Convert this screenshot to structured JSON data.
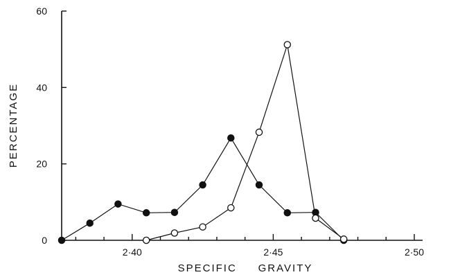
{
  "chart_data": {
    "type": "line",
    "xlabel": "SPECIFIC     GRAVITY",
    "ylabel": "PERCENTAGE",
    "xlim": [
      2.375,
      2.5
    ],
    "ylim": [
      0,
      60
    ],
    "x_ticks": [
      2.4,
      2.45,
      2.5
    ],
    "x_tick_labels": [
      "2·40",
      "2·45",
      "2·50"
    ],
    "x_minor_ticks": [
      2.38,
      2.39,
      2.41,
      2.42,
      2.43,
      2.44,
      2.46,
      2.47,
      2.48,
      2.49
    ],
    "y_ticks": [
      0,
      20,
      40,
      60
    ],
    "y_tick_labels": [
      "0",
      "20",
      "40",
      "60"
    ],
    "grid": false,
    "series": [
      {
        "marker": "filled-circle",
        "color": "#111111",
        "x": [
          2.375,
          2.385,
          2.395,
          2.405,
          2.415,
          2.425,
          2.435,
          2.445,
          2.455,
          2.465,
          2.475
        ],
        "y": [
          0,
          4.5,
          9.5,
          7.2,
          7.3,
          14.5,
          26.8,
          14.5,
          7.2,
          7.3,
          0
        ]
      },
      {
        "marker": "open-circle",
        "color": "#111111",
        "x": [
          2.405,
          2.415,
          2.425,
          2.435,
          2.445,
          2.455,
          2.465,
          2.475
        ],
        "y": [
          0,
          1.9,
          3.5,
          8.5,
          28.3,
          51.2,
          5.8,
          0.3
        ]
      }
    ]
  }
}
